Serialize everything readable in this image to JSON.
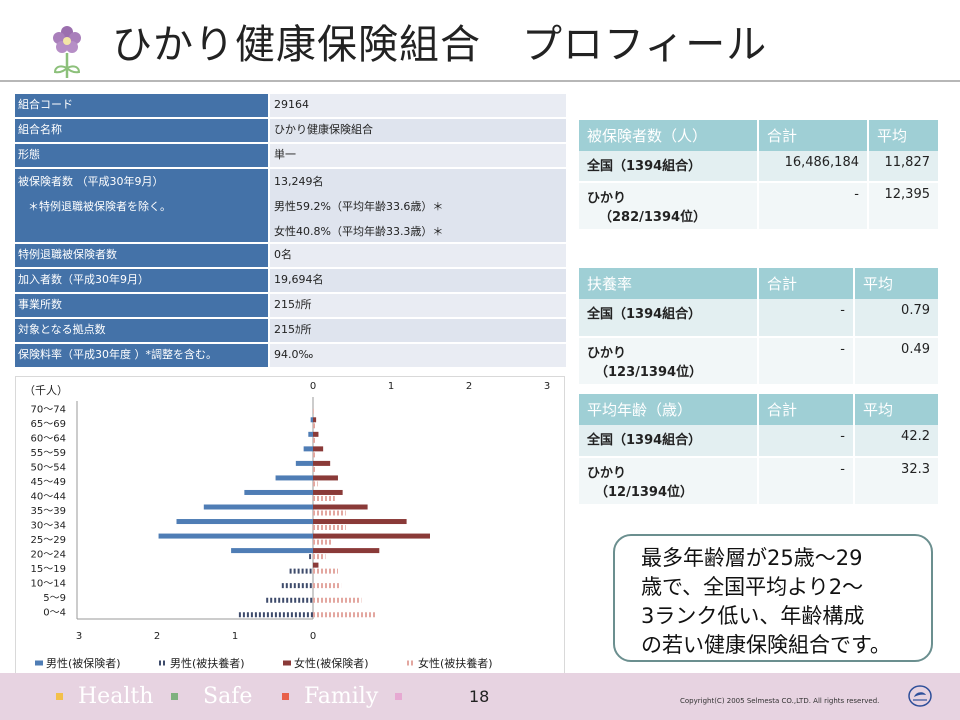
{
  "title": "ひかり健康保険組合　プロフィール",
  "profile": [
    {
      "label": "組合コード",
      "value": "29164"
    },
    {
      "label": "組合名称",
      "value": "ひかり健康保険組合"
    },
    {
      "label": "形態",
      "value": "単一"
    },
    {
      "label": "被保険者数 （平成30年9月）",
      "label2": "＊特例退職被保険者を除く。",
      "value": "13,249名",
      "value2": "男性59.2%（平均年齢33.6歳）＊",
      "value3": "女性40.8%（平均年齢33.3歳）＊"
    },
    {
      "label": "特例退職被保険者数",
      "value": "0名"
    },
    {
      "label": "加入者数（平成30年9月）",
      "value": "19,694名"
    },
    {
      "label": "事業所数",
      "value": "215ｶ所"
    },
    {
      "label": "対象となる拠点数",
      "value": "215ｶ所"
    },
    {
      "label": "保険料率（平成30年度 ）*調整を含む。",
      "value": "94.0‰"
    }
  ],
  "tables": {
    "insured": {
      "headers": [
        "被保険者数（人）",
        "合計",
        "平均"
      ],
      "rows": [
        {
          "label": "全国（1394組合）",
          "label2": "",
          "total": "16,486,184",
          "avg": "11,827"
        },
        {
          "label": "ひかり",
          "label2": "（282/1394位）",
          "total": "-",
          "avg": "12,395"
        }
      ]
    },
    "dependency": {
      "headers": [
        "扶養率",
        "合計",
        "平均"
      ],
      "rows": [
        {
          "label": "全国（1394組合）",
          "label2": "",
          "total": "-",
          "avg": "0.79"
        },
        {
          "label": "ひかり",
          "label2": "（123/1394位）",
          "total": "-",
          "avg": "0.49"
        }
      ]
    },
    "age": {
      "headers": [
        "平均年齢（歳）",
        "合計",
        "平均"
      ],
      "rows": [
        {
          "label": "全国（1394組合）",
          "label2": "",
          "total": "-",
          "avg": "42.2"
        },
        {
          "label": "ひかり",
          "label2": "（12/1394位）",
          "total": "-",
          "avg": "32.3"
        }
      ]
    }
  },
  "callout": [
    "最多年齢層が25歳～29",
    "歳で、全国平均より2～",
    "3ランク低い、年齢構成",
    "の若い健康保険組合です。"
  ],
  "footer": {
    "tags": [
      "Health",
      "Safe",
      "Family"
    ],
    "tag_colors": [
      "#f3c04a",
      "#7fb17f",
      "#e8604a",
      "#e6a9d2"
    ],
    "page": "18",
    "copyright": "Copyright(C) 2005 Selmesta CO.,LTD.  All rights reserved."
  },
  "chart_data": {
    "type": "bar",
    "orientation": "horizontal-pyramid",
    "unit_label": "（千人）",
    "categories": [
      "70～74",
      "65～69",
      "60～64",
      "55～59",
      "50～54",
      "45～49",
      "40～44",
      "35～39",
      "30～34",
      "25～29",
      "20～24",
      "15～19",
      "10～14",
      "5～9",
      "0～4"
    ],
    "left_axis_ticks": [
      "3",
      "2",
      "1",
      "0"
    ],
    "right_axis_ticks": [
      "0",
      "1",
      "2",
      "3"
    ],
    "xlim": [
      0,
      3
    ],
    "series": [
      {
        "name": "男性(被保険者)",
        "side": "left",
        "style": "solid",
        "color": "#4f7db5",
        "values": [
          0.0,
          0.03,
          0.06,
          0.12,
          0.22,
          0.48,
          0.88,
          1.4,
          1.75,
          1.98,
          1.05,
          0.0,
          0.0,
          0.0,
          0.0
        ]
      },
      {
        "name": "男性(被扶養者)",
        "side": "left",
        "style": "dashed",
        "color": "#3e4b6b",
        "values": [
          0.0,
          0.0,
          0.0,
          0.0,
          0.0,
          0.0,
          0.0,
          0.0,
          0.0,
          0.0,
          0.05,
          0.3,
          0.4,
          0.6,
          0.95
        ]
      },
      {
        "name": "女性(被保険者)",
        "side": "right",
        "style": "solid",
        "color": "#8a3a38",
        "values": [
          0.0,
          0.04,
          0.07,
          0.13,
          0.22,
          0.32,
          0.38,
          0.7,
          1.2,
          1.5,
          0.85,
          0.07,
          0.0,
          0.0,
          0.0
        ]
      },
      {
        "name": "女性(被扶養者)",
        "side": "right",
        "style": "dashed",
        "color": "#e3a7a0",
        "values": [
          0.01,
          0.03,
          0.04,
          0.04,
          0.05,
          0.06,
          0.28,
          0.42,
          0.42,
          0.25,
          0.16,
          0.32,
          0.36,
          0.62,
          0.82
        ]
      }
    ]
  }
}
